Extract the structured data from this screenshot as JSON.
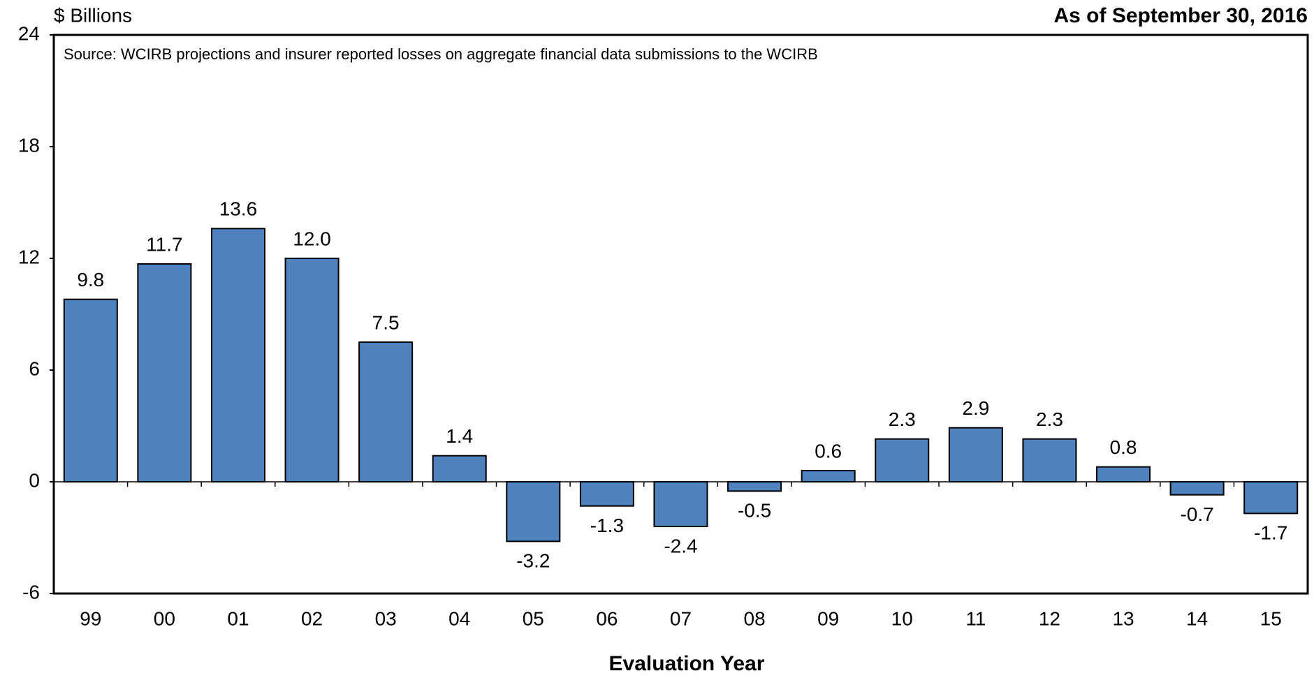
{
  "chart_data": {
    "type": "bar",
    "title": "As of September 30, 2016",
    "y_axis_label": "$ Billions",
    "x_axis_label": "Evaluation Year",
    "annotation": "Source: WCIRB projections and insurer reported losses on aggregate financial data submissions to the WCIRB",
    "categories": [
      "99",
      "00",
      "01",
      "02",
      "03",
      "04",
      "05",
      "06",
      "07",
      "08",
      "09",
      "10",
      "11",
      "12",
      "13",
      "14",
      "15"
    ],
    "values": [
      9.8,
      11.7,
      13.6,
      12.0,
      7.5,
      1.4,
      -3.2,
      -1.3,
      -2.4,
      -0.5,
      0.6,
      2.3,
      2.9,
      2.3,
      0.8,
      -0.7,
      -1.7
    ],
    "value_labels": [
      "9.8",
      "11.7",
      "13.6",
      "12.0",
      "7.5",
      "1.4",
      "-3.2",
      "-1.3",
      "-2.4",
      "-0.5",
      "0.6",
      "2.3",
      "2.9",
      "2.3",
      "0.8",
      "-0.7",
      "-1.7"
    ],
    "color": "#4f81bd",
    "ylim": [
      -6,
      24
    ],
    "yticks": [
      -6,
      0,
      6,
      12,
      18,
      24
    ],
    "grid": false
  }
}
